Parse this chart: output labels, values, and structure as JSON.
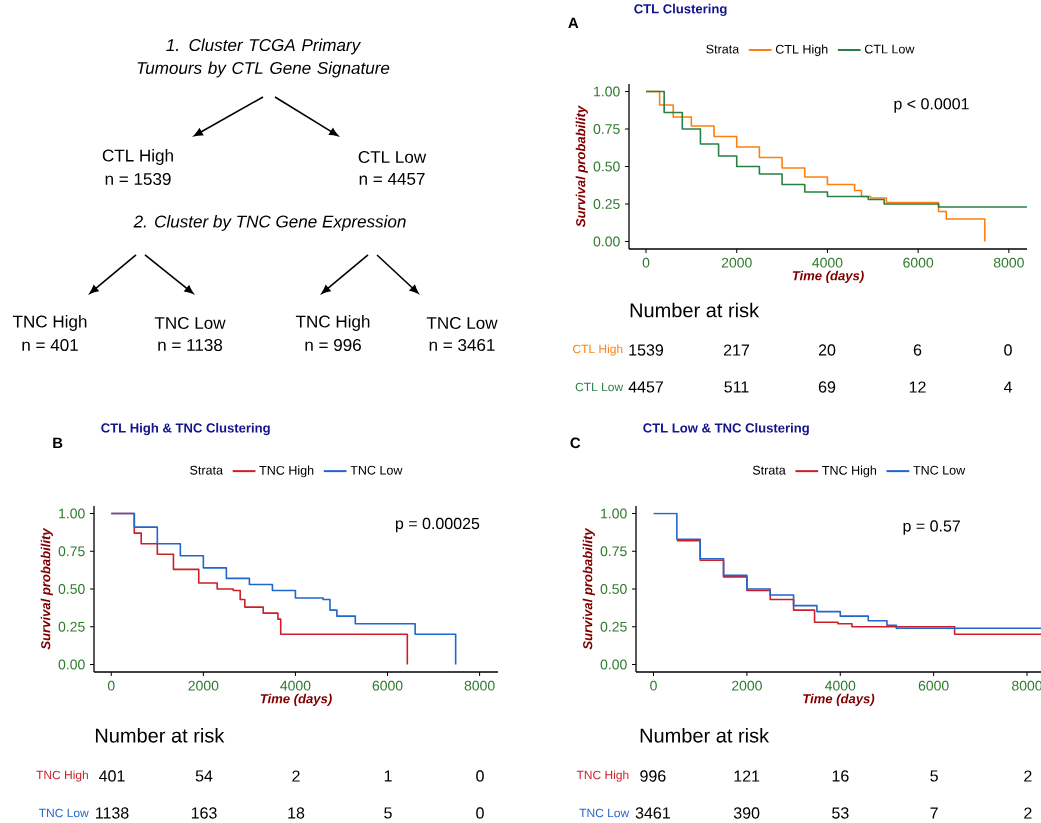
{
  "chart_data": [
    {
      "type": "other",
      "annotations": [
        "1. Cluster TCGA Primary Tumours by CTL Gene Signature",
        "CTL High",
        "n = 1539",
        "CTL Low",
        "n = 4457",
        "2. Cluster by TNC Gene Expression",
        "TNC High",
        "n = 401",
        "TNC Low",
        "n = 1138",
        "TNC High",
        "n = 996",
        "TNC Low",
        "n = 3461"
      ]
    },
    {
      "type": "step",
      "title": "CTL Clustering",
      "xlabel": "Time (days)",
      "ylabel": "Survival probability",
      "legend_title": "Strata",
      "legend": "top",
      "annotations": [
        "A",
        "p < 0.0001"
      ],
      "xlim": [
        -375,
        8400
      ],
      "ylim": [
        -0.05,
        1.05
      ],
      "xticks": [
        0,
        2000,
        4000,
        6000,
        8000
      ],
      "yticks": [
        {
          "value": 0,
          "label": "0.00"
        },
        {
          "value": 0.25,
          "label": "0.25"
        },
        {
          "value": 0.5,
          "label": "0.50"
        },
        {
          "value": 0.75,
          "label": "0.75"
        },
        {
          "value": 1,
          "label": "1.00"
        }
      ],
      "series": [
        {
          "name": "CTL High",
          "color": "#ff7f0e",
          "x": [
            0,
            300,
            600,
            1000,
            1500,
            2000,
            2500,
            3000,
            3500,
            4000,
            4600,
            4750,
            4950,
            5300,
            6450,
            6620,
            7470
          ],
          "values": [
            1.0,
            0.91,
            0.83,
            0.77,
            0.7,
            0.63,
            0.56,
            0.49,
            0.43,
            0.38,
            0.34,
            0.3,
            0.29,
            0.26,
            0.2,
            0.15,
            0.0
          ]
        },
        {
          "name": "CTL Low",
          "color": "#2a7f45",
          "x": [
            0,
            400,
            800,
            1200,
            1600,
            2000,
            2500,
            3000,
            3500,
            4000,
            4900,
            5250,
            6450,
            8400
          ],
          "values": [
            1.0,
            0.86,
            0.75,
            0.65,
            0.57,
            0.5,
            0.45,
            0.38,
            0.33,
            0.3,
            0.28,
            0.25,
            0.23,
            0.23
          ]
        }
      ]
    },
    {
      "type": "other",
      "title": "Number at risk",
      "annotations": [
        "CTL High",
        "1539",
        "217",
        "20",
        "6",
        "0",
        "CTL Low",
        "4457",
        "511",
        "69",
        "12",
        "4"
      ]
    },
    {
      "type": "step",
      "title": "CTL High & TNC Clustering",
      "xlabel": "Time (days)",
      "ylabel": "Survival probability",
      "legend_title": "Strata",
      "legend": "top",
      "annotations": [
        "B",
        "p = 0.00025"
      ],
      "xlim": [
        -375,
        8400
      ],
      "ylim": [
        -0.05,
        1.05
      ],
      "xticks": [
        0,
        2000,
        4000,
        6000,
        8000
      ],
      "yticks": [
        {
          "value": 0,
          "label": "0.00"
        },
        {
          "value": 0.25,
          "label": "0.25"
        },
        {
          "value": 0.5,
          "label": "0.50"
        },
        {
          "value": 0.75,
          "label": "0.75"
        },
        {
          "value": 1,
          "label": "1.00"
        }
      ],
      "series": [
        {
          "name": "TNC High",
          "color": "#cc1f2a",
          "x": [
            0,
            500,
            650,
            1000,
            1350,
            1900,
            2300,
            2650,
            2800,
            2900,
            3300,
            3620,
            3680,
            6430
          ],
          "values": [
            1.0,
            0.87,
            0.8,
            0.73,
            0.63,
            0.54,
            0.5,
            0.49,
            0.43,
            0.38,
            0.34,
            0.3,
            0.2,
            0.0
          ]
        },
        {
          "name": "TNC Low",
          "color": "#2166cc",
          "x": [
            0,
            500,
            1000,
            1500,
            2000,
            2500,
            3000,
            3500,
            4000,
            4600,
            4750,
            4900,
            5300,
            6600,
            7480
          ],
          "values": [
            1.0,
            0.91,
            0.8,
            0.72,
            0.64,
            0.57,
            0.53,
            0.49,
            0.44,
            0.43,
            0.36,
            0.32,
            0.27,
            0.2,
            0.0
          ]
        }
      ]
    },
    {
      "type": "other",
      "title": "Number at risk",
      "annotations": [
        "TNC High",
        "401",
        "54",
        "2",
        "1",
        "0",
        "TNC Low",
        "1138",
        "163",
        "18",
        "5",
        "0"
      ]
    },
    {
      "type": "step",
      "title": "CTL Low & TNC Clustering",
      "xlabel": "Time (days)",
      "ylabel": "Survival probability",
      "legend_title": "Strata",
      "legend": "top",
      "annotations": [
        "C",
        "p = 0.57"
      ],
      "xlim": [
        -375,
        8300
      ],
      "ylim": [
        -0.05,
        1.05
      ],
      "xticks": [
        0,
        2000,
        4000,
        6000,
        8000
      ],
      "yticks": [
        {
          "value": 0,
          "label": "0.00"
        },
        {
          "value": 0.25,
          "label": "0.25"
        },
        {
          "value": 0.5,
          "label": "0.50"
        },
        {
          "value": 0.75,
          "label": "0.75"
        },
        {
          "value": 1,
          "label": "1.00"
        }
      ],
      "series": [
        {
          "name": "TNC High",
          "color": "#cc1f2a",
          "x": [
            500,
            1000,
            1500,
            2000,
            2500,
            3000,
            3450,
            3950,
            4250,
            6450,
            8300
          ],
          "values": [
            0.82,
            0.69,
            0.58,
            0.49,
            0.43,
            0.36,
            0.28,
            0.27,
            0.25,
            0.2,
            0.2
          ]
        },
        {
          "name": "TNC Low",
          "color": "#2166cc",
          "x": [
            0,
            500,
            1000,
            1500,
            2000,
            2500,
            3000,
            3500,
            4000,
            4600,
            5000,
            5200,
            8300
          ],
          "values": [
            1.0,
            0.83,
            0.7,
            0.59,
            0.5,
            0.46,
            0.39,
            0.35,
            0.32,
            0.29,
            0.26,
            0.24,
            0.24
          ]
        }
      ]
    },
    {
      "type": "other",
      "title": "Number at risk",
      "annotations": [
        "TNC High",
        "996",
        "121",
        "16",
        "5",
        "2",
        "TNC Low",
        "3461",
        "390",
        "53",
        "7",
        "2"
      ]
    }
  ]
}
